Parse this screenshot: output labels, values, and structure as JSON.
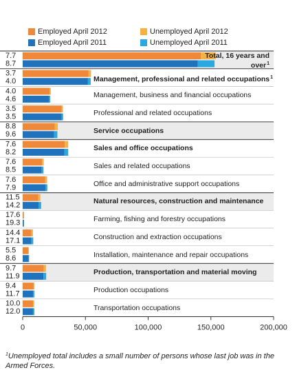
{
  "chart_data": {
    "type": "stacked-bar",
    "categories": [
      "Total, 16 years and over",
      "Management, professional and related occupations",
      "Management, business and financial occupations",
      "Professional and related occupations",
      "Service occupations",
      "Sales and office occupations",
      "Sales and related occupations",
      "Office and administrative support occupations",
      "Natural resources, construction and maintenance",
      "Farming, fishing and forestry occupations",
      "Construction and extraction occupations",
      "Installation, maintenance and repair occupations",
      "Production, transportation and material moving",
      "Production occupations",
      "Transportation occupations"
    ],
    "category_notes": [
      "1",
      "1",
      null,
      null,
      null,
      null,
      null,
      null,
      null,
      null,
      null,
      null,
      null,
      null,
      null
    ],
    "bold": [
      true,
      true,
      false,
      false,
      true,
      true,
      false,
      false,
      true,
      false,
      false,
      false,
      true,
      false,
      false
    ],
    "shaded": [
      true,
      false,
      false,
      false,
      true,
      false,
      false,
      false,
      true,
      false,
      false,
      false,
      true,
      false,
      false
    ],
    "groups": [
      {
        "rates": [
          "7.7",
          "3.7",
          "4.0",
          "3.5",
          "8.8",
          "7.6",
          "7.6",
          "7.6",
          "11.5",
          "17.6",
          "14.4",
          "5.5",
          "9.7",
          "9.4",
          "10.0"
        ],
        "series": [
          {
            "name": "Employed April 2012",
            "color": "#f0883a",
            "values": [
              142000,
              52500,
              21500,
              31000,
              25500,
              33500,
              15500,
              18000,
              12500,
              900,
              7000,
              4600,
              16800,
              8500,
              8300
            ]
          },
          {
            "name": "Unemployed April 2012",
            "color": "#f8b040",
            "values": [
              11900,
              2000,
              900,
              1100,
              2500,
              2750,
              1270,
              1480,
              1600,
              190,
              1180,
              270,
              1800,
              880,
              920
            ]
          }
        ]
      },
      {
        "rates": [
          "8.7",
          "4.0",
          "4.6",
          "3.5",
          "9.6",
          "8.2",
          "8.5",
          "7.9",
          "14.2",
          "19.3",
          "17.1",
          "8.6",
          "11.9",
          "11.7",
          "12.0"
        ],
        "series": [
          {
            "name": "Employed April 2011",
            "color": "#1f72bb",
            "values": [
              139600,
              52000,
              21000,
              31000,
              25000,
              33300,
              15200,
              18100,
              12600,
              900,
              7000,
              4700,
              16500,
              8300,
              8200
            ]
          },
          {
            "name": "Unemployed April 2011",
            "color": "#2aa8e0",
            "values": [
              13300,
              2200,
              1000,
              1200,
              2650,
              3000,
              1400,
              1550,
              2100,
              210,
              1450,
              440,
              2200,
              1100,
              1100
            ]
          }
        ]
      }
    ],
    "xlim": [
      0,
      200000
    ],
    "xticks": [
      0,
      {
        "value": 50000,
        "label": "50,000"
      },
      {
        "value": 100000,
        "label": "100,000"
      },
      {
        "value": 150000,
        "label": "150,000"
      },
      {
        "value": 200000,
        "label": "200,000"
      }
    ],
    "footnote": {
      "mark": "1",
      "text": "Unemployed total includes a small number of persons whose last job was in the Armed Forces."
    }
  }
}
